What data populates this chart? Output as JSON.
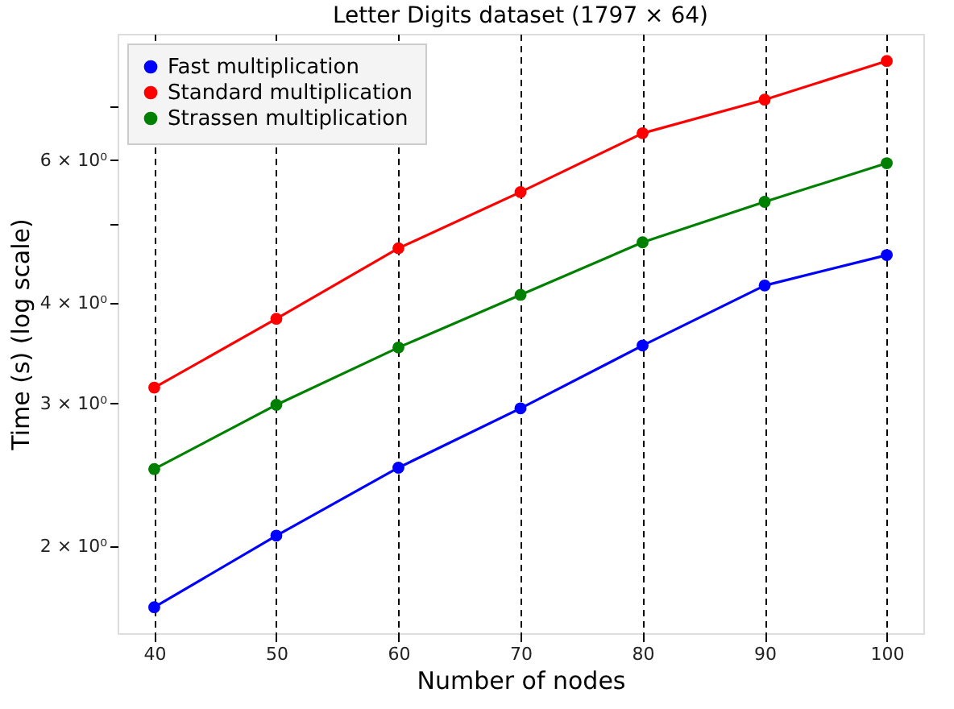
{
  "chart_data": {
    "type": "line",
    "title": "Letter Digits dataset (1797 × 64)",
    "xlabel": "Number of nodes",
    "ylabel": "Time (s) (log scale)",
    "x": [
      40,
      50,
      60,
      70,
      80,
      90,
      100
    ],
    "series": [
      {
        "name": "Fast multiplication",
        "color": "#0000ff",
        "values": [
          1.68,
          2.06,
          2.5,
          2.96,
          3.54,
          4.2,
          4.58
        ]
      },
      {
        "name": "Standard multiplication",
        "color": "#ff0000",
        "values": [
          3.14,
          3.82,
          4.67,
          5.48,
          6.48,
          7.13,
          7.96
        ]
      },
      {
        "name": "Strassen multiplication",
        "color": "#008000",
        "values": [
          2.49,
          2.99,
          3.52,
          4.09,
          4.75,
          5.33,
          5.95
        ]
      }
    ],
    "xlim": [
      37,
      103
    ],
    "xticks": [
      40,
      50,
      60,
      70,
      80,
      90,
      100
    ],
    "ylim": [
      1.56,
      8.6
    ],
    "yticks": [
      {
        "value": 2,
        "label": "2 × 10⁰"
      },
      {
        "value": 3,
        "label": "3 × 10⁰"
      },
      {
        "value": 4,
        "label": "4 × 10⁰"
      },
      {
        "value": 5,
        "label": null
      },
      {
        "value": 6,
        "label": "6 × 10⁰"
      },
      {
        "value": 7,
        "label": null
      }
    ],
    "log": true,
    "grid": "x",
    "legend": "top left",
    "marker": "circle",
    "line_style": "solid"
  }
}
